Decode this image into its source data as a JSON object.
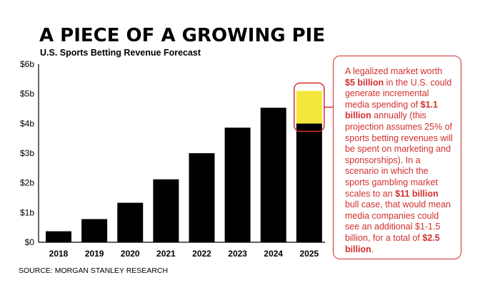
{
  "title": "A PIECE OF A GROWING PIE",
  "subtitle": "U.S. Sports Betting Revenue Forecast",
  "source": "SOURCE: MORGAN STANLEY RESEARCH",
  "colors": {
    "bar": "#000000",
    "highlight": "#f5e63c",
    "accent": "#d32f2f"
  },
  "callout": {
    "p1": "A legalized market worth ",
    "b1": "$5 billion",
    "p2": " in the U.S. could generate incremental media spending of ",
    "b2": "$1.1 billion",
    "p3": " annually (this projection assumes 25% of sports betting revenues will be spent on marketing and sponsorships). In a scenario in which the sports gambling market scales to an ",
    "b3": "$11 billion",
    "p4": " bull case, that would mean media companies could see an additional $1-1.5 billion, for a total of ",
    "b4": "$2.5 billion",
    "p5": "."
  },
  "chart_data": {
    "type": "bar",
    "categories": [
      "2018",
      "2019",
      "2020",
      "2021",
      "2022",
      "2023",
      "2024",
      "2025"
    ],
    "values": [
      0.37,
      0.78,
      1.33,
      2.12,
      3.0,
      3.86,
      4.53,
      5.1
    ],
    "highlight": {
      "category": "2025",
      "from": 4.0,
      "to": 5.1
    },
    "ylim": [
      0,
      6
    ],
    "yticks": [
      0,
      1,
      2,
      3,
      4,
      5,
      6
    ],
    "ytick_labels": [
      "$0",
      "$1b",
      "$2b",
      "$3b",
      "$4b",
      "$5b",
      "$6b"
    ],
    "grid": false
  }
}
